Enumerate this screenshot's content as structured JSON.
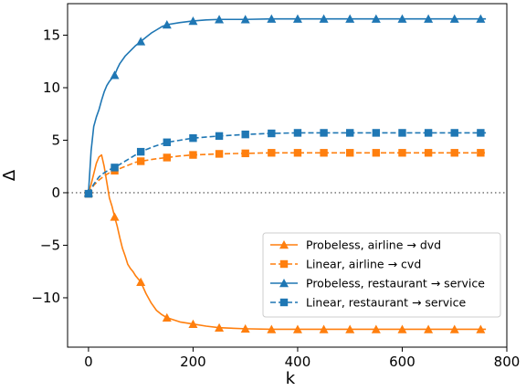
{
  "chart_data": {
    "type": "line",
    "title": "",
    "xlabel": "k",
    "ylabel": "Δ",
    "xlim": [
      -40,
      800
    ],
    "ylim": [
      -14.7,
      18.0
    ],
    "x_ticks": [
      0,
      200,
      400,
      600,
      800
    ],
    "y_ticks": [
      -10,
      -5,
      0,
      5,
      10,
      15
    ],
    "x_tick_labels": [
      "0",
      "200",
      "400",
      "600",
      "800"
    ],
    "y_tick_labels": [
      "−10",
      "−5",
      "0",
      "5",
      "10",
      "15"
    ],
    "reference_line": {
      "y": 0,
      "style": "dotted",
      "color": "#808080"
    },
    "grid": false,
    "legend": {
      "placement": "lower-right"
    },
    "series": [
      {
        "name": "Probeless, airline → dvd",
        "color": "#ff7f0e",
        "linestyle": "solid",
        "marker": "triangle",
        "x": [
          0,
          5,
          10,
          15,
          20,
          25,
          30,
          35,
          40,
          45,
          50,
          55,
          60,
          65,
          70,
          75,
          80,
          85,
          90,
          95,
          100,
          110,
          120,
          130,
          140,
          150,
          175,
          200,
          225,
          250,
          300,
          350,
          400,
          450,
          500,
          550,
          600,
          650,
          700,
          760
        ],
        "y": [
          0.0,
          0.8,
          1.8,
          2.8,
          3.4,
          3.6,
          2.5,
          1.0,
          -0.5,
          -1.3,
          -2.3,
          -3.2,
          -4.3,
          -5.3,
          -6.0,
          -6.8,
          -7.2,
          -7.5,
          -7.9,
          -8.2,
          -8.5,
          -9.6,
          -10.5,
          -11.2,
          -11.6,
          -11.9,
          -12.3,
          -12.5,
          -12.7,
          -12.85,
          -12.95,
          -13.0,
          -13.0,
          -13.0,
          -13.0,
          -13.0,
          -13.0,
          -13.0,
          -13.0,
          -13.0
        ],
        "marker_x": [
          0,
          50,
          100,
          150,
          200,
          250,
          300,
          350,
          400,
          450,
          500,
          550,
          600,
          650,
          700,
          750
        ]
      },
      {
        "name": "Linear, airline → cvd",
        "color": "#ff7f0e",
        "linestyle": "dashed",
        "marker": "square",
        "x": [
          0,
          10,
          20,
          30,
          40,
          50,
          60,
          70,
          80,
          90,
          100,
          125,
          150,
          175,
          200,
          250,
          300,
          350,
          400,
          450,
          500,
          550,
          600,
          650,
          700,
          760
        ],
        "y": [
          -0.1,
          0.7,
          1.2,
          1.6,
          1.9,
          2.1,
          2.3,
          2.5,
          2.7,
          2.9,
          3.0,
          3.2,
          3.35,
          3.5,
          3.6,
          3.7,
          3.75,
          3.8,
          3.8,
          3.8,
          3.8,
          3.8,
          3.8,
          3.8,
          3.8,
          3.8
        ],
        "marker_x": [
          0,
          50,
          100,
          150,
          200,
          250,
          300,
          350,
          400,
          450,
          500,
          550,
          600,
          650,
          700,
          750
        ]
      },
      {
        "name": "Probeless, restaurant → service",
        "color": "#1f77b4",
        "linestyle": "solid",
        "marker": "triangle",
        "x": [
          0,
          5,
          10,
          15,
          20,
          25,
          30,
          35,
          40,
          45,
          50,
          55,
          60,
          70,
          80,
          90,
          100,
          110,
          120,
          130,
          140,
          150,
          175,
          200,
          225,
          250,
          300,
          350,
          400,
          450,
          500,
          550,
          600,
          650,
          700,
          760
        ],
        "y": [
          0.0,
          4.0,
          6.3,
          7.2,
          7.9,
          8.8,
          9.6,
          10.2,
          10.6,
          10.9,
          11.2,
          11.8,
          12.3,
          13.0,
          13.5,
          14.0,
          14.4,
          14.8,
          15.2,
          15.5,
          15.8,
          16.0,
          16.2,
          16.35,
          16.45,
          16.5,
          16.5,
          16.55,
          16.55,
          16.55,
          16.55,
          16.55,
          16.55,
          16.55,
          16.55,
          16.55
        ],
        "marker_x": [
          0,
          50,
          100,
          150,
          200,
          250,
          300,
          350,
          400,
          450,
          500,
          550,
          600,
          650,
          700,
          750
        ]
      },
      {
        "name": "Linear, restaurant → service",
        "color": "#1f77b4",
        "linestyle": "dashed",
        "marker": "square",
        "x": [
          0,
          10,
          20,
          30,
          40,
          50,
          60,
          70,
          80,
          90,
          100,
          125,
          150,
          175,
          200,
          250,
          300,
          350,
          400,
          450,
          500,
          550,
          600,
          650,
          700,
          760
        ],
        "y": [
          -0.1,
          0.8,
          1.5,
          1.9,
          2.2,
          2.4,
          2.7,
          3.0,
          3.3,
          3.6,
          3.9,
          4.4,
          4.8,
          5.0,
          5.2,
          5.4,
          5.55,
          5.65,
          5.7,
          5.7,
          5.7,
          5.7,
          5.7,
          5.7,
          5.7,
          5.7
        ],
        "marker_x": [
          0,
          50,
          100,
          150,
          200,
          250,
          300,
          350,
          400,
          450,
          500,
          550,
          600,
          650,
          700,
          750
        ]
      }
    ]
  }
}
